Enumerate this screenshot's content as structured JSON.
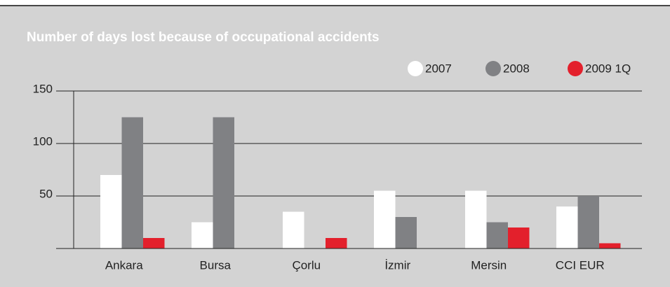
{
  "chart_data": {
    "type": "bar",
    "title": "Number of days lost because of occupational accidents",
    "categories": [
      "Ankara",
      "Bursa",
      "Çorlu",
      "İzmir",
      "Mersin",
      "CCI EUR"
    ],
    "series": [
      {
        "name": "2007",
        "color": "#ffffff",
        "values": [
          70,
          25,
          35,
          55,
          55,
          40
        ]
      },
      {
        "name": "2008",
        "color": "#808184",
        "values": [
          125,
          125,
          null,
          30,
          25,
          50
        ]
      },
      {
        "name": "2009 1Q",
        "color": "#e3202c",
        "values": [
          10,
          null,
          10,
          null,
          20,
          5
        ]
      }
    ],
    "ylim": [
      0,
      150
    ],
    "yticks": [
      50,
      100,
      150
    ],
    "grid": true
  }
}
